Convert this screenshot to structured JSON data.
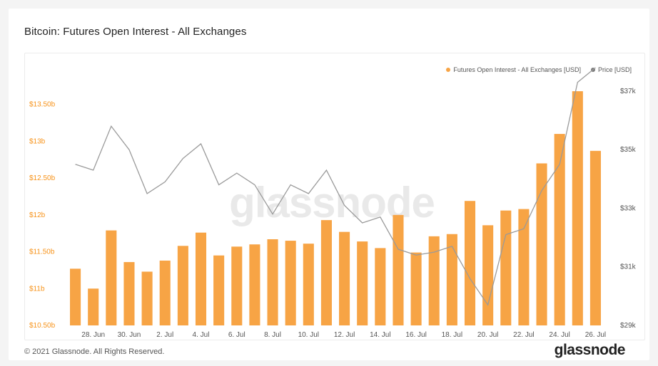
{
  "title": "Bitcoin: Futures Open Interest - All Exchanges",
  "watermark": "glassnode",
  "footer": {
    "copyright": "© 2021 Glassnode. All Rights Reserved.",
    "logo": "glassnode"
  },
  "legend": {
    "oi_label": "Futures Open Interest - All Exchanges [USD]",
    "price_label": "Price [USD]"
  },
  "colors": {
    "bar": "#f7a445",
    "oi_accent": "#f7931a",
    "price_line": "#9a9a9a",
    "price_dot": "#7a7a7a"
  },
  "chart_data": {
    "type": "bar",
    "dates": [
      "27 Jun",
      "28 Jun",
      "29 Jun",
      "30 Jun",
      "1 Jul",
      "2 Jul",
      "3 Jul",
      "4 Jul",
      "5 Jul",
      "6 Jul",
      "7 Jul",
      "8 Jul",
      "9 Jul",
      "10 Jul",
      "11 Jul",
      "12 Jul",
      "13 Jul",
      "14 Jul",
      "15 Jul",
      "16 Jul",
      "17 Jul",
      "18 Jul",
      "19 Jul",
      "20 Jul",
      "21 Jul",
      "22 Jul",
      "23 Jul",
      "24 Jul",
      "25 Jul",
      "26 Jul"
    ],
    "x_tick_labels": [
      "28. Jun",
      "30. Jun",
      "2. Jul",
      "4. Jul",
      "6. Jul",
      "8. Jul",
      "10. Jul",
      "12. Jul",
      "14. Jul",
      "16. Jul",
      "18. Jul",
      "20. Jul",
      "22. Jul",
      "24. Jul",
      "26. Jul"
    ],
    "series": [
      {
        "name": "Futures Open Interest - All Exchanges [USD]",
        "axis": "left",
        "kind": "bar",
        "values": [
          11.27,
          11.0,
          11.79,
          11.36,
          11.23,
          11.38,
          11.58,
          11.76,
          11.45,
          11.57,
          11.6,
          11.67,
          11.65,
          11.61,
          11.93,
          11.77,
          11.64,
          11.55,
          12.0,
          11.49,
          11.71,
          11.74,
          12.19,
          11.86,
          12.06,
          12.08,
          12.7,
          13.1,
          13.68,
          12.87
        ]
      },
      {
        "name": "Price [USD]",
        "axis": "right",
        "kind": "line",
        "values": [
          34500,
          34300,
          35800,
          35000,
          33500,
          33900,
          34700,
          35200,
          33800,
          34200,
          33800,
          32800,
          33800,
          33500,
          34300,
          33100,
          32500,
          32700,
          31600,
          31400,
          31500,
          31700,
          30600,
          29700,
          32100,
          32300,
          33600,
          34500,
          37300,
          37800
        ]
      }
    ],
    "y_left": {
      "ticks": [
        10.5,
        11,
        11.5,
        12,
        12.5,
        13,
        13.5
      ],
      "tick_labels": [
        "$10.50b",
        "$11b",
        "$11.50b",
        "$12b",
        "$12.50b",
        "$13b",
        "$13.50b"
      ],
      "range": [
        10.5,
        14.0
      ]
    },
    "y_right": {
      "ticks": [
        29000,
        31000,
        33000,
        35000,
        37000
      ],
      "tick_labels": [
        "$29k",
        "$31k",
        "$33k",
        "$35k",
        "$37k"
      ],
      "range": [
        29000,
        37800
      ]
    },
    "grid": false,
    "legend_position": "top-right"
  }
}
